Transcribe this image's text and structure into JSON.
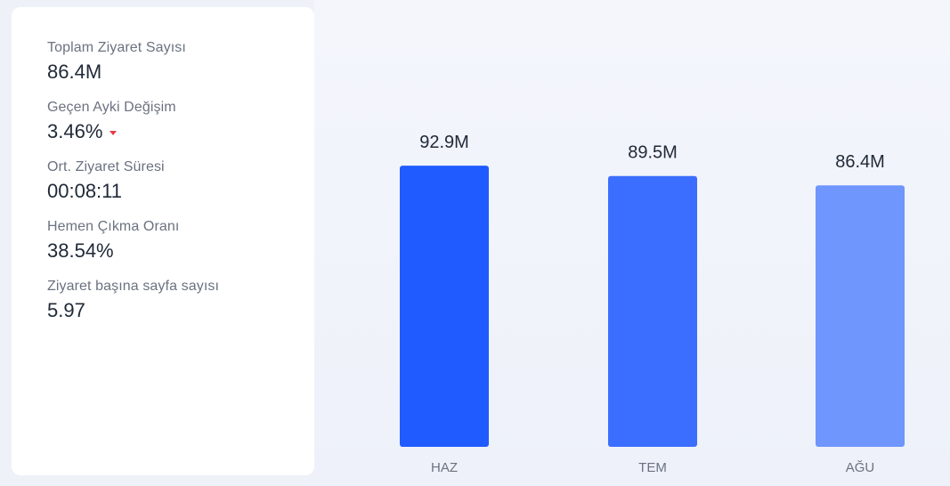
{
  "stats": [
    {
      "label": "Toplam Ziyaret Sayısı",
      "value": "86.4M"
    },
    {
      "label": "Geçen Ayki Değişim",
      "value": "3.46%",
      "trend": "down",
      "trend_color": "#e53945"
    },
    {
      "label": "Ort. Ziyaret Süresi",
      "value": "00:08:11"
    },
    {
      "label": "Hemen Çıkma Oranı",
      "value": "38.54%"
    },
    {
      "label": "Ziyaret başına sayfa sayısı",
      "value": "5.97"
    }
  ],
  "chart_data": {
    "type": "bar",
    "categories": [
      "HAZ",
      "TEM",
      "AĞU"
    ],
    "values": [
      92.9,
      89.5,
      86.4
    ],
    "data_labels": [
      "92.9M",
      "89.5M",
      "86.4M"
    ],
    "colors": [
      "#1f5bff",
      "#3b6dff",
      "#6f96fc"
    ],
    "title": "",
    "xlabel": "",
    "ylabel": "",
    "ylim": [
      0,
      100
    ],
    "grid": false,
    "legend": "none"
  }
}
